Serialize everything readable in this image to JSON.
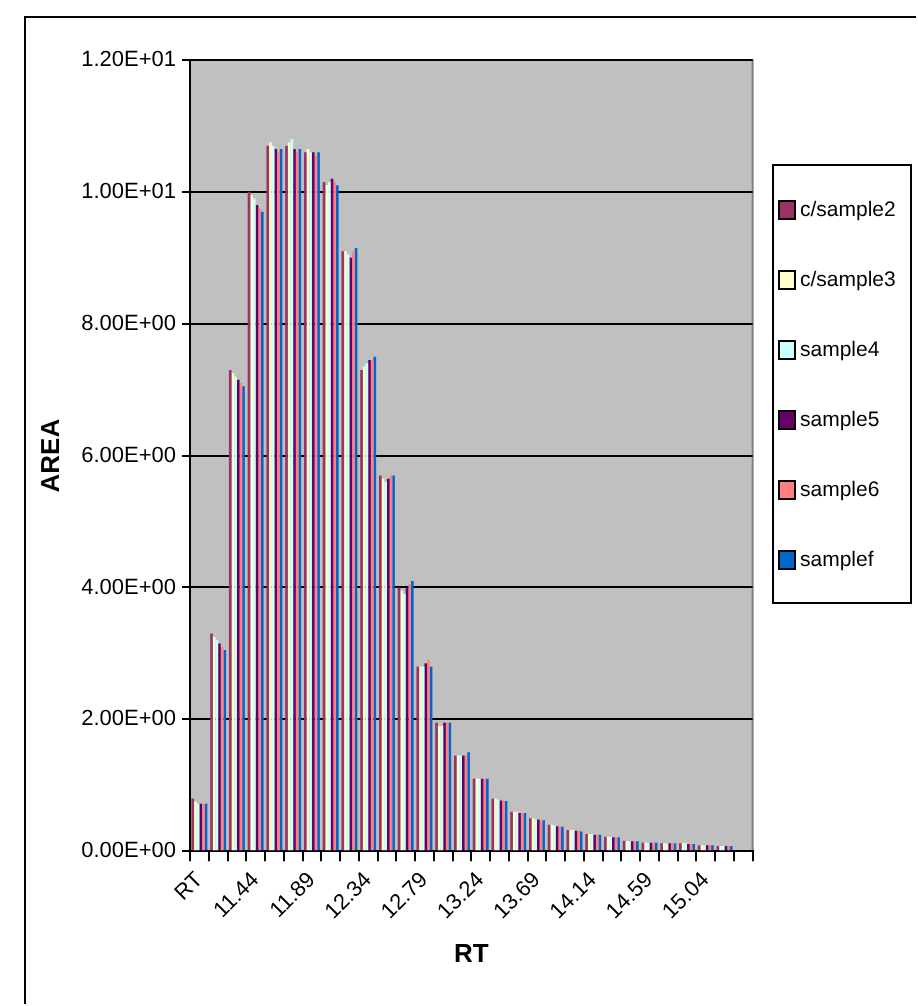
{
  "chart_data": {
    "type": "bar",
    "xlabel": "RT",
    "ylabel": "AREA",
    "categories": [
      "RT",
      null,
      null,
      "11.44",
      null,
      null,
      "11.89",
      null,
      null,
      "12.34",
      null,
      null,
      "12.79",
      null,
      null,
      "13.24",
      null,
      null,
      "13.69",
      null,
      null,
      "14.14",
      null,
      null,
      "14.59",
      null,
      null,
      "15.04",
      null,
      null
    ],
    "series": [
      {
        "name": "c/sample2",
        "color": "#993366",
        "values": [
          0.8,
          3.3,
          7.3,
          10.0,
          10.7,
          10.7,
          10.6,
          10.15,
          9.1,
          7.3,
          5.7,
          4.0,
          2.8,
          1.95,
          1.45,
          1.1,
          0.8,
          0.6,
          0.5,
          0.4,
          0.32,
          0.26,
          0.22,
          0.16,
          0.13,
          0.12,
          0.12,
          0.09,
          0.08,
          null
        ]
      },
      {
        "name": "c/sample3",
        "color": "#ffffcc",
        "values": [
          0.75,
          3.25,
          7.25,
          9.95,
          10.75,
          10.75,
          10.65,
          10.1,
          9.1,
          7.35,
          5.65,
          3.95,
          2.8,
          1.9,
          1.45,
          1.1,
          0.8,
          0.6,
          0.5,
          0.4,
          0.32,
          0.26,
          0.22,
          0.15,
          0.13,
          0.12,
          0.12,
          0.09,
          0.08,
          null
        ]
      },
      {
        "name": "sample4",
        "color": "#ccffff",
        "values": [
          0.72,
          3.2,
          7.2,
          9.9,
          10.7,
          10.8,
          10.6,
          10.15,
          9.05,
          7.4,
          5.6,
          3.9,
          2.8,
          1.9,
          1.45,
          1.1,
          0.78,
          0.6,
          0.48,
          0.39,
          0.32,
          0.26,
          0.22,
          0.15,
          0.13,
          0.12,
          0.12,
          0.09,
          0.08,
          null
        ]
      },
      {
        "name": "sample5",
        "color": "#660066",
        "values": [
          0.72,
          3.15,
          7.15,
          9.8,
          10.65,
          10.65,
          10.6,
          10.2,
          9.0,
          7.45,
          5.65,
          4.0,
          2.85,
          1.95,
          1.45,
          1.1,
          0.77,
          0.58,
          0.48,
          0.38,
          0.31,
          0.25,
          0.21,
          0.15,
          0.13,
          0.12,
          0.11,
          0.09,
          0.08,
          null
        ]
      },
      {
        "name": "sample6",
        "color": "#ff8080",
        "values": [
          0.72,
          3.1,
          7.1,
          9.75,
          10.6,
          10.6,
          10.55,
          10.15,
          9.1,
          7.45,
          5.7,
          4.05,
          2.9,
          1.95,
          1.45,
          1.1,
          0.77,
          0.58,
          0.47,
          0.38,
          0.31,
          0.25,
          0.21,
          0.15,
          0.13,
          0.12,
          0.11,
          0.09,
          0.08,
          null
        ]
      },
      {
        "name": "samplef",
        "color": "#0066cc",
        "values": [
          0.72,
          3.05,
          7.05,
          9.7,
          10.65,
          10.65,
          10.6,
          10.1,
          9.15,
          7.5,
          5.7,
          4.1,
          2.8,
          1.95,
          1.5,
          1.1,
          0.76,
          0.58,
          0.47,
          0.37,
          0.3,
          0.25,
          0.21,
          0.15,
          0.13,
          0.12,
          0.11,
          0.09,
          0.08,
          null
        ]
      }
    ],
    "ylim": [
      0,
      12
    ],
    "yticks": [
      {
        "value": 0,
        "label": "0.00E+00"
      },
      {
        "value": 2,
        "label": "2.00E+00"
      },
      {
        "value": 4,
        "label": "4.00E+00"
      },
      {
        "value": 6,
        "label": "6.00E+00"
      },
      {
        "value": 8,
        "label": "8.00E+00"
      },
      {
        "value": 10,
        "label": "1.00E+01"
      },
      {
        "value": 12,
        "label": "1.20E+01"
      }
    ],
    "grid": "y",
    "legend": "right"
  }
}
